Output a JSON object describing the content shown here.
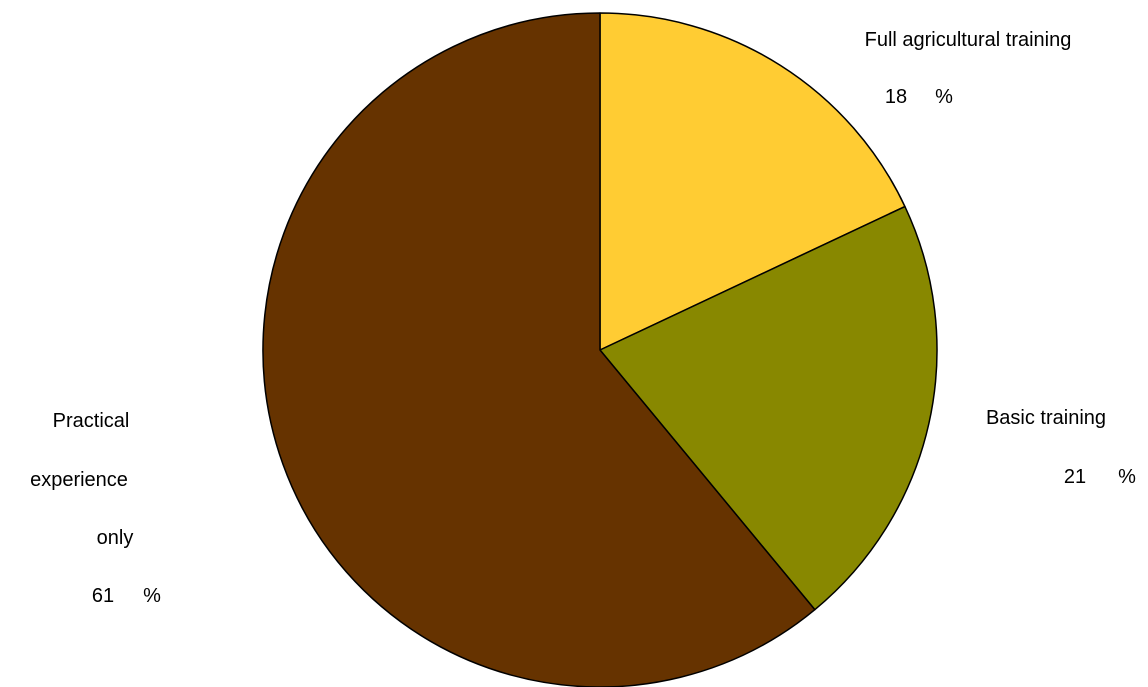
{
  "chart_data": {
    "type": "pie",
    "slices": [
      {
        "key": "full",
        "label_lines": [
          "Full agricultural training"
        ],
        "value": 18,
        "value_label": "18",
        "unit": "%",
        "color": "#FFCC33"
      },
      {
        "key": "basic",
        "label_lines": [
          "Basic training"
        ],
        "value": 21,
        "value_label": "21",
        "unit": "%",
        "color": "#888800"
      },
      {
        "key": "practical",
        "label_lines": [
          "Practical",
          "experience",
          "only"
        ],
        "value": 61,
        "value_label": "61",
        "unit": "%",
        "color": "#663300"
      }
    ],
    "start_angle": "12 o'clock",
    "direction": "clockwise",
    "legend": "none (direct labels)"
  }
}
